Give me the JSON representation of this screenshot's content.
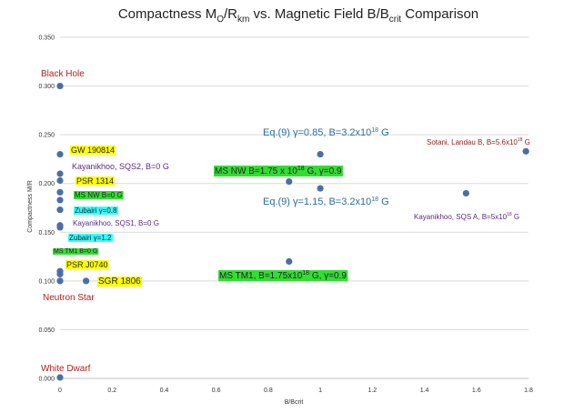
{
  "chart_data": {
    "type": "scatter",
    "title": {
      "prefix": "Compactness M",
      "sub1": "O",
      "mid": "/R",
      "sub2": "km",
      "middle": " vs. Magnetic Field B/B",
      "sub3": "crit",
      "suffix": " Comparison"
    },
    "xlabel": "B/Bcrit",
    "ylabel": "Compactness M/R",
    "xlim": [
      0,
      1.8
    ],
    "ylim": [
      0,
      0.35
    ],
    "x_ticks": [
      "0",
      "0.2",
      "0.4",
      "0.6",
      "0.8",
      "1",
      "1.2",
      "1.4",
      "1.6",
      "1.8"
    ],
    "y_ticks": [
      "0.000",
      "0.050",
      "0.100",
      "0.150",
      "0.200",
      "0.250",
      "0.300",
      "0.350"
    ],
    "grid": "horizontal",
    "marker_color": "#4a6fa5",
    "points": [
      {
        "x": 0,
        "y": 0.3
      },
      {
        "x": 0,
        "y": 0.23
      },
      {
        "x": 0,
        "y": 0.21
      },
      {
        "x": 0,
        "y": 0.203
      },
      {
        "x": 0,
        "y": 0.191
      },
      {
        "x": 0,
        "y": 0.183
      },
      {
        "x": 0,
        "y": 0.173
      },
      {
        "x": 0,
        "y": 0.157
      },
      {
        "x": 0,
        "y": 0.155
      },
      {
        "x": 0,
        "y": 0.11
      },
      {
        "x": 0,
        "y": 0.107
      },
      {
        "x": 0,
        "y": 0.1
      },
      {
        "x": 0,
        "y": 0.001
      },
      {
        "x": 0.1,
        "y": 0.1
      },
      {
        "x": 0.88,
        "y": 0.12
      },
      {
        "x": 0.88,
        "y": 0.202
      },
      {
        "x": 1.0,
        "y": 0.23
      },
      {
        "x": 1.0,
        "y": 0.195
      },
      {
        "x": 1.56,
        "y": 0.19
      },
      {
        "x": 1.79,
        "y": 0.233
      }
    ],
    "annotations": [
      {
        "text": "Black Hole",
        "color": "#b22222",
        "bg": "",
        "font_size": 10
      },
      {
        "text": "Neutron Star",
        "color": "#b22222",
        "bg": "",
        "font_size": 10
      },
      {
        "text": "White Dwarf",
        "color": "#b22222",
        "bg": "",
        "font_size": 10
      },
      {
        "text": "GW 190814",
        "color": "#222222",
        "bg": "#ffff00",
        "font_size": 9
      },
      {
        "text": "Kayanikhoo, SQS2, B=0 G",
        "color": "#5b2a86",
        "bg": "",
        "font_size": 9
      },
      {
        "text": "PSR 1314",
        "color": "#222222",
        "bg": "#ffff00",
        "font_size": 9
      },
      {
        "text": "MS NW B=0 G",
        "color": "#222222",
        "bg": "#33dd33",
        "font_size": 8
      },
      {
        "text": "Zubairi γ=0.8",
        "color": "#222222",
        "bg": "#33ffff",
        "font_size": 8
      },
      {
        "text": "Kayanikhoo, SQS1, B=0 G",
        "color": "#5b2a86",
        "bg": "",
        "font_size": 8
      },
      {
        "text": "Zubairi γ=1.2",
        "color": "#222222",
        "bg": "#33ffff",
        "font_size": 8
      },
      {
        "text": "MS TM1 B=0 G",
        "color": "#222222",
        "bg": "#33dd33",
        "font_size": 7
      },
      {
        "text": "PSR J0740",
        "color": "#222222",
        "bg": "#ffff00",
        "font_size": 9
      },
      {
        "text": "SGR 1806",
        "color": "#222222",
        "bg": "#ffff00",
        "font_size": 10
      },
      {
        "text": "Eq.(9) γ=0.85, B=3.2x10",
        "sup": "18",
        "tail": " G",
        "color": "#2e6b9e",
        "bg": "",
        "font_size": 11
      },
      {
        "text": "MS NW B=1.75 x 10",
        "sup": "18",
        "tail": " G, γ=0.9",
        "color": "#222222",
        "bg": "#33dd33",
        "font_size": 10
      },
      {
        "text": "Eq.(9) γ=1.15, B=3.2x10",
        "sup": "18",
        "tail": " G",
        "color": "#2e6b9e",
        "bg": "",
        "font_size": 11
      },
      {
        "text": "MS TM1, B=1.75x10",
        "sup": "18",
        "tail": " G, γ=0.9",
        "color": "#222222",
        "bg": "#33dd33",
        "font_size": 10
      },
      {
        "text": "Sotani, Landau B, B=5.6x10",
        "sup": "18",
        "tail": " G",
        "color": "#8b1a1a",
        "bg": "",
        "font_size": 8
      },
      {
        "text": "Kayanikhoo, SQS A, B=5x10",
        "sup": "18",
        "tail": " G",
        "color": "#5b2a86",
        "bg": "",
        "font_size": 8
      }
    ]
  }
}
